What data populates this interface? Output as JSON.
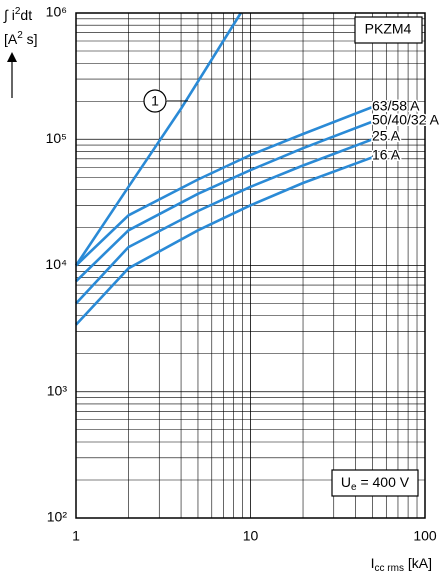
{
  "chart_data": {
    "type": "line",
    "y_label_lines": [
      [
        "∫ i",
        "2",
        "dt"
      ],
      [
        "[A",
        "2",
        " s]"
      ]
    ],
    "x_label": [
      "I",
      "cc rms",
      " [kA]"
    ],
    "box_label": "PKZM4",
    "voltage_label": [
      "U",
      "e",
      " = 400 V"
    ],
    "curve_marker": "1",
    "log_x": true,
    "log_y": true,
    "grid": true,
    "xlim": [
      1,
      100
    ],
    "ylim": [
      100,
      1000000
    ],
    "xticks": [
      1,
      10,
      100
    ],
    "yticks": [
      {
        "value": 100,
        "label": "10²"
      },
      {
        "value": 1000,
        "label": "10³"
      },
      {
        "value": 10000,
        "label": "10⁴"
      },
      {
        "value": 100000,
        "label": "10⁵"
      },
      {
        "value": 1000000,
        "label": "10⁶"
      }
    ],
    "xminorticks": [
      2,
      3,
      4,
      5,
      6,
      7,
      8,
      9,
      20,
      30,
      40,
      50,
      60,
      70,
      80,
      90
    ],
    "yminorticks": [
      200,
      300,
      400,
      500,
      600,
      700,
      800,
      900,
      2000,
      3000,
      4000,
      5000,
      6000,
      7000,
      8000,
      9000,
      20000,
      30000,
      40000,
      50000,
      60000,
      70000,
      80000,
      90000,
      200000,
      300000,
      400000,
      500000,
      600000,
      700000,
      800000,
      900000
    ],
    "series": [
      {
        "name": "1",
        "color": "#2a8ad6",
        "x": [
          1,
          2,
          4,
          8.8
        ],
        "values": [
          10000,
          42000,
          175000,
          1000000
        ]
      },
      {
        "name": "63/58 A",
        "color": "#2a8ad6",
        "x": [
          1,
          2,
          5,
          10,
          20,
          50
        ],
        "values": [
          10000,
          25000,
          48000,
          75000,
          110000,
          180000
        ]
      },
      {
        "name": "50/40/32 A",
        "color": "#2a8ad6",
        "x": [
          1,
          2,
          5,
          10,
          20,
          50
        ],
        "values": [
          7500,
          19000,
          37000,
          57000,
          85000,
          138000
        ]
      },
      {
        "name": "25 A",
        "color": "#2a8ad6",
        "x": [
          1,
          2,
          5,
          10,
          20,
          50
        ],
        "values": [
          5000,
          14000,
          27000,
          42000,
          62000,
          100000
        ]
      },
      {
        "name": "16 A",
        "color": "#2a8ad6",
        "x": [
          1,
          2,
          5,
          10,
          20,
          50
        ],
        "values": [
          3400,
          9500,
          19000,
          30000,
          45000,
          72000
        ]
      }
    ]
  }
}
